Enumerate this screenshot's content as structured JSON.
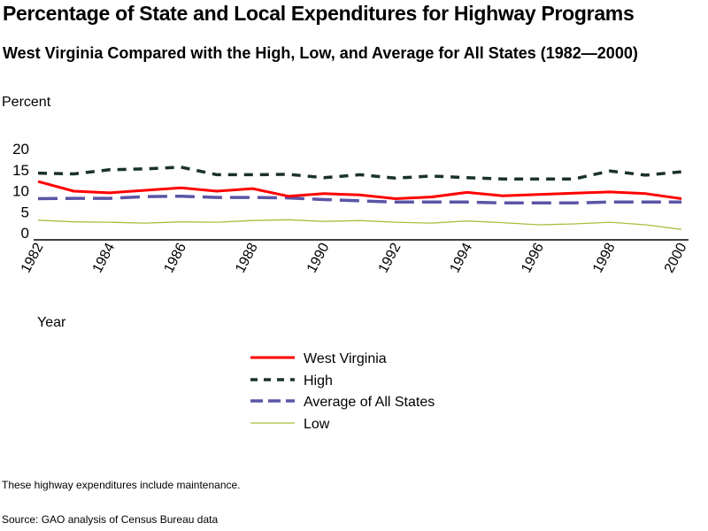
{
  "chart_data": {
    "type": "line",
    "title": "Percentage of State and Local Expenditures for Highway Programs",
    "subtitle": "West Virginia Compared with the High, Low, and Average for All States (1982—2000)",
    "xlabel": "Year",
    "ylabel": "Percent",
    "ylim": [
      0,
      20
    ],
    "yticks": [
      "0",
      "5",
      "10",
      "15",
      "20"
    ],
    "xticks": [
      "1982",
      "1984",
      "1986",
      "1988",
      "1990",
      "1992",
      "1994",
      "1996",
      "1998",
      "2000"
    ],
    "x": [
      1982,
      1983,
      1984,
      1985,
      1986,
      1987,
      1988,
      1989,
      1990,
      1991,
      1992,
      1993,
      1994,
      1995,
      1996,
      1997,
      1998,
      1999,
      2000
    ],
    "grid": false,
    "legend_placement": "bottom-center",
    "series": [
      {
        "name": "West Virginia",
        "color": "#ff0000",
        "style": "solid",
        "values": [
          12.2,
          9.9,
          9.5,
          10.1,
          10.7,
          9.9,
          10.5,
          8.7,
          9.3,
          9.0,
          8.1,
          8.5,
          9.6,
          8.8,
          9.1,
          9.4,
          9.7,
          9.3,
          8.1
        ]
      },
      {
        "name": "High",
        "color": "#1a3326",
        "style": "dotted-dash",
        "values": [
          14.2,
          14.0,
          15.0,
          15.2,
          15.6,
          13.8,
          13.8,
          13.9,
          13.1,
          13.8,
          13.0,
          13.5,
          13.1,
          12.8,
          12.8,
          12.8,
          14.7,
          13.7,
          14.5
        ]
      },
      {
        "name": "Average of All States",
        "color": "#5a55a5",
        "style": "dashed",
        "values": [
          8.1,
          8.2,
          8.2,
          8.6,
          8.7,
          8.4,
          8.4,
          8.3,
          7.9,
          7.6,
          7.3,
          7.3,
          7.3,
          7.1,
          7.1,
          7.1,
          7.3,
          7.3,
          7.3
        ]
      },
      {
        "name": "Low",
        "color": "#a8bf3c",
        "style": "thin",
        "values": [
          3.0,
          2.6,
          2.5,
          2.3,
          2.6,
          2.5,
          2.9,
          3.1,
          2.7,
          2.9,
          2.5,
          2.3,
          2.8,
          2.4,
          1.9,
          2.1,
          2.5,
          1.9,
          0.8
        ]
      }
    ]
  },
  "notes": {
    "note": "These highway expenditures include maintenance.",
    "source": "Source: GAO analysis of Census Bureau data"
  }
}
